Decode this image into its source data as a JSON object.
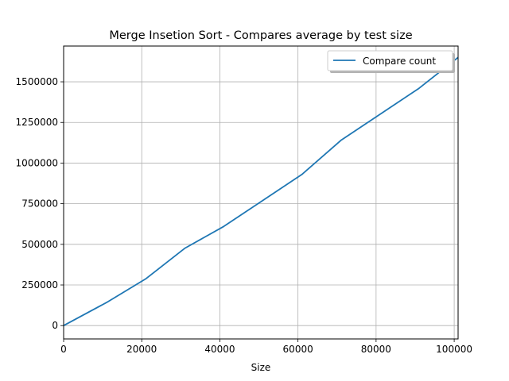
{
  "chart_data": {
    "type": "line",
    "title": "Merge Insetion Sort - Compares average by test size",
    "xlabel": "Size",
    "ylabel": "",
    "xlim": [
      0,
      101000
    ],
    "ylim": [
      -82000,
      1720000
    ],
    "xticks": [
      0,
      20000,
      40000,
      60000,
      80000,
      100000
    ],
    "xtick_labels": [
      "0",
      "20000",
      "40000",
      "60000",
      "80000",
      "100000"
    ],
    "yticks": [
      0,
      250000,
      500000,
      750000,
      1000000,
      1250000,
      1500000
    ],
    "ytick_labels": [
      "0",
      "250000",
      "500000",
      "750000",
      "1000000",
      "1250000",
      "1500000"
    ],
    "grid": true,
    "legend_position": "top-right",
    "series": [
      {
        "name": "Compare count",
        "color": "#1f77b4",
        "x": [
          0,
          11000,
          21000,
          31000,
          41000,
          51000,
          61000,
          71000,
          81000,
          91000,
          101000
        ],
        "y": [
          0,
          142000,
          287000,
          475000,
          610000,
          770000,
          930000,
          1140000,
          1300000,
          1460000,
          1650000
        ]
      }
    ]
  }
}
